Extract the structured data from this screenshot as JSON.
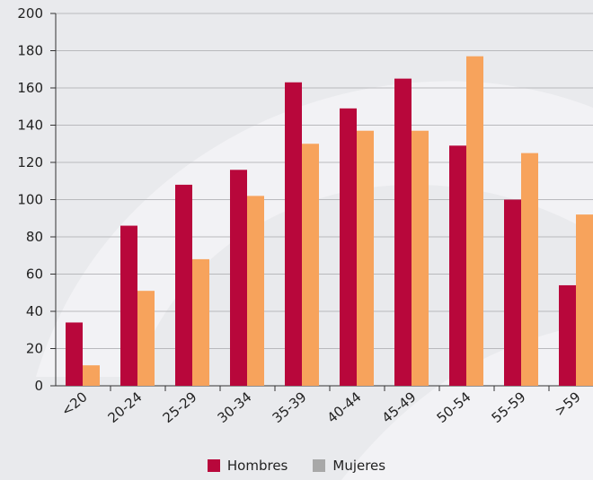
{
  "chart_data": {
    "type": "bar",
    "categories": [
      "<20",
      "20-24",
      "25-29",
      "30-34",
      "35-39",
      "40-44",
      "45-49",
      "50-54",
      "55-59",
      ">59"
    ],
    "series": [
      {
        "name": "Hombres",
        "values": [
          34,
          86,
          108,
          116,
          163,
          149,
          165,
          129,
          100,
          54
        ],
        "color": "#b8073b",
        "legend_swatch": "#b8073b"
      },
      {
        "name": "Mujeres",
        "values": [
          11,
          51,
          68,
          102,
          130,
          137,
          137,
          177,
          125,
          92
        ],
        "color": "#f7a35c",
        "legend_swatch": "#a8a8a8"
      }
    ],
    "ylim": [
      0,
      200
    ],
    "yticks": [
      0,
      20,
      40,
      60,
      80,
      100,
      120,
      140,
      160,
      180,
      200
    ],
    "grid": true,
    "legend_position": "bottom",
    "title": "",
    "xlabel": "",
    "ylabel": ""
  }
}
